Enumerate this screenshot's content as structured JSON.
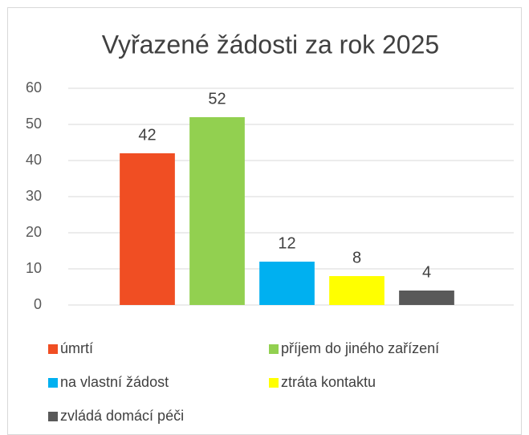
{
  "chart_data": {
    "type": "bar",
    "title": "Vyřazené žádosti za rok 2025",
    "categories": [
      "úmrtí",
      "příjem do jiného zařízení",
      "na vlastní žádost",
      "ztráta kontaktu",
      "zvládá domácí péči"
    ],
    "values": [
      42,
      52,
      12,
      8,
      4
    ],
    "colors": [
      "#f04e23",
      "#92d050",
      "#00b0f0",
      "#ffff00",
      "#595959"
    ],
    "ylim": [
      0,
      60
    ],
    "yticks": [
      0,
      10,
      20,
      30,
      40,
      50,
      60
    ],
    "grid": true,
    "legend": "bottom"
  }
}
